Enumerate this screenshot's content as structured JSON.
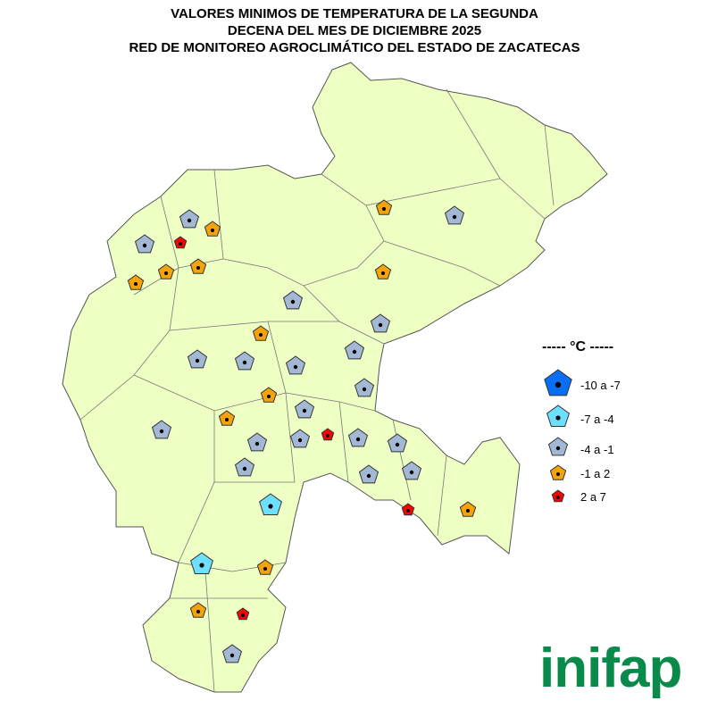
{
  "title": {
    "line1": "VALORES MINIMOS DE TEMPERATURA DE LA SEGUNDA",
    "line2": "DECENA DEL MES DE DICIEMBRE 2025",
    "line3": "RED DE MONITOREO AGROCLIMÁTICO DEL ESTADO DE ZACATECAS"
  },
  "legend": {
    "title": "----- °C -----",
    "classes": [
      {
        "label": "-10 a -7",
        "color": "#0a6ef5"
      },
      {
        "label": "-7 a -4",
        "color": "#6ee0ff"
      },
      {
        "label": "-4 a -1",
        "color": "#a3b8d4"
      },
      {
        "label": "-1 a 2",
        "color": "#f5a30a"
      },
      {
        "label": "2 a 7",
        "color": "#ff0000"
      }
    ]
  },
  "map": {
    "fill": "#eeffc4",
    "stroke": "#555555"
  },
  "stations_class": [
    2,
    2,
    4,
    3,
    3,
    3,
    3,
    3,
    2,
    3,
    2,
    2,
    3,
    2,
    2,
    2,
    2,
    2,
    3,
    2,
    3,
    4,
    2,
    2,
    2,
    2,
    2,
    2,
    2,
    2,
    1,
    4,
    3,
    1,
    3,
    3,
    4,
    2
  ],
  "logo": "inifap"
}
